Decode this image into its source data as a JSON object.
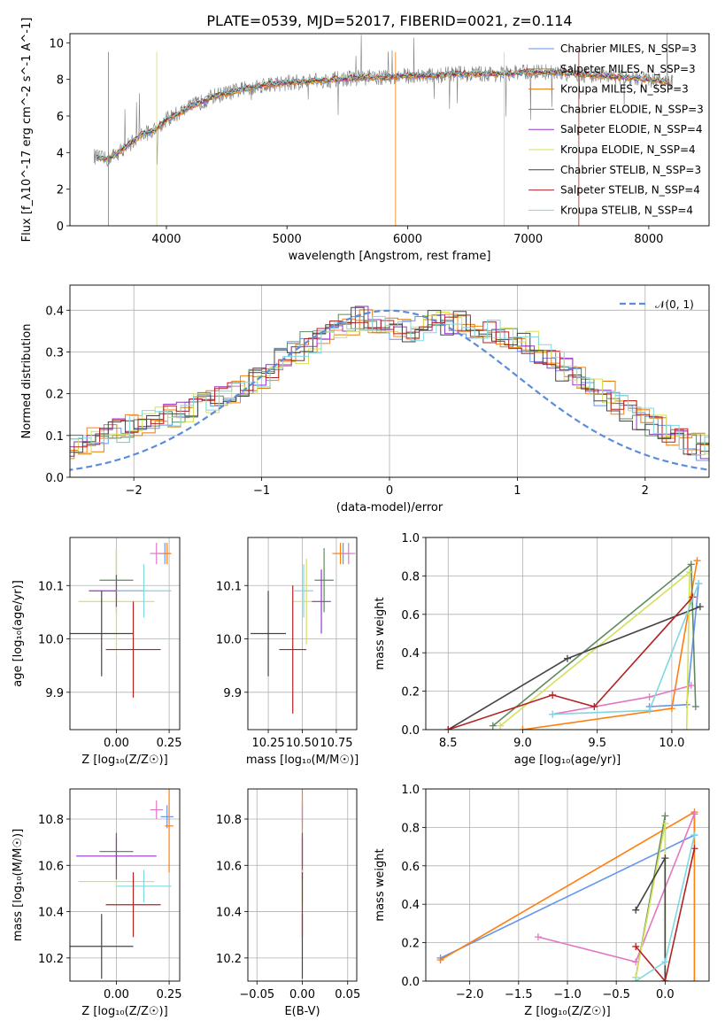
{
  "chart_data": [
    {
      "type": "line",
      "title": "PLATE=0539, MJD=52017, FIBERID=0021, z=0.114",
      "xlabel": "wavelength [Angstrom, rest frame]",
      "ylabel": "Flux [f_λ10^-17 erg cm^-2 s^-1 A^-1]",
      "xlim": [
        3200,
        8500
      ],
      "ylim": [
        0,
        10.5
      ],
      "xticks": [
        "4000",
        "5000",
        "6000",
        "7000",
        "8000"
      ],
      "yticks": [
        "0",
        "2",
        "4",
        "6",
        "8",
        "10"
      ],
      "legend_position": "top-right",
      "observed_spectrum_approx": {
        "x": [
          3400,
          3500,
          3600,
          3700,
          3800,
          3900,
          4000,
          4200,
          4400,
          4600,
          4800,
          5000,
          5200,
          5400,
          5600,
          5800,
          6000,
          6200,
          6400,
          6600,
          6800,
          7000,
          7200,
          7400,
          7600,
          7800,
          8000,
          8200
        ],
        "y": [
          3.8,
          3.6,
          4.0,
          4.5,
          5.0,
          5.2,
          5.8,
          6.5,
          7.1,
          7.4,
          7.7,
          7.8,
          7.9,
          8.0,
          8.1,
          8.1,
          8.2,
          8.2,
          8.3,
          8.3,
          8.3,
          8.4,
          8.4,
          8.3,
          8.2,
          8.1,
          8.0,
          7.8
        ]
      },
      "series": [
        {
          "name": "Chabrier MILES, N_SSP=3",
          "color": "#6495ed"
        },
        {
          "name": "Salpeter MILES, N_SSP=3",
          "color": "#ff7f0e"
        },
        {
          "name": "Kroupa MILES, N_SSP=3",
          "color": "#e07b0c"
        },
        {
          "name": "Chabrier ELODIE, N_SSP=3",
          "color": "#5f8a5f"
        },
        {
          "name": "Salpeter ELODIE, N_SSP=4",
          "color": "#9932cc"
        },
        {
          "name": "Kroupa ELODIE, N_SSP=4",
          "color": "#d4e157"
        },
        {
          "name": "Chabrier STELIB, N_SSP=3",
          "color": "#444444"
        },
        {
          "name": "Salpeter STELIB, N_SSP=4",
          "color": "#b22222"
        },
        {
          "name": "Kroupa STELIB, N_SSP=4",
          "color": "#7fd8e0"
        }
      ]
    },
    {
      "type": "step",
      "xlabel": "(data-model)/error",
      "ylabel": "Normed distribution",
      "xlim": [
        -2.5,
        2.5
      ],
      "ylim": [
        0,
        0.46
      ],
      "xticks": [
        "−2",
        "−1",
        "0",
        "1",
        "2"
      ],
      "yticks": [
        "0.0",
        "0.1",
        "0.2",
        "0.3",
        "0.4"
      ],
      "grid": true,
      "legend": "𝒩(0, 1)",
      "legend_position": "top-right",
      "normal_curve_color": "#5b8dd9",
      "bin_width": 0.1,
      "hist_envelope": [
        0.03,
        0.04,
        0.05,
        0.06,
        0.07,
        0.08,
        0.09,
        0.1,
        0.11,
        0.12,
        0.13,
        0.14,
        0.15,
        0.16,
        0.17,
        0.18,
        0.19,
        0.2,
        0.22,
        0.24,
        0.26,
        0.28,
        0.3,
        0.32,
        0.34,
        0.36,
        0.37,
        0.38,
        0.37,
        0.36,
        0.36,
        0.35,
        0.36,
        0.37,
        0.37,
        0.37,
        0.36,
        0.35,
        0.34,
        0.33,
        0.32,
        0.3,
        0.28,
        0.26,
        0.24,
        0.22,
        0.2,
        0.18,
        0.16,
        0.14,
        0.12,
        0.1,
        0.09,
        0.08,
        0.07,
        0.06,
        0.05,
        0.05,
        0.04,
        0.04
      ]
    },
    {
      "type": "scatter-errorbar",
      "xlabel": "Z [log₁₀(Z/Z☉)]",
      "ylabel": "age  [log₁₀(age/yr)]",
      "xlim": [
        -0.22,
        0.3
      ],
      "ylim": [
        9.83,
        10.19
      ],
      "xticks": [
        "0.00",
        "0.25"
      ],
      "yticks": [
        "9.9",
        "10.0",
        "10.1"
      ],
      "points": [
        {
          "x": 0.23,
          "y": 10.16,
          "dx": 0.03,
          "dy": 0.02,
          "color": "#6495ed"
        },
        {
          "x": 0.24,
          "y": 10.16,
          "dx": 0.02,
          "dy": 0.02,
          "color": "#ff7f0e"
        },
        {
          "x": 0.19,
          "y": 10.16,
          "dx": 0.03,
          "dy": 0.02,
          "color": "#e377c2"
        },
        {
          "x": 0.0,
          "y": 10.11,
          "dx": 0.08,
          "dy": 0.06,
          "color": "#5f8a5f"
        },
        {
          "x": 0.0,
          "y": 10.07,
          "dx": 0.18,
          "dy": 0.1,
          "color": "#d4e157"
        },
        {
          "x": 0.0,
          "y": 10.09,
          "dx": 0.13,
          "dy": 0.03,
          "color": "#9932cc"
        },
        {
          "x": 0.13,
          "y": 10.09,
          "dx": 0.13,
          "dy": 0.05,
          "color": "#7fd8e0"
        },
        {
          "x": -0.07,
          "y": 10.01,
          "dx": 0.15,
          "dy": 0.08,
          "color": "#444444"
        },
        {
          "x": 0.08,
          "y": 9.98,
          "dx": 0.13,
          "dy": 0.09,
          "color": "#b22222"
        }
      ]
    },
    {
      "type": "scatter-errorbar",
      "xlabel": "mass [log₁₀(M/M☉)]",
      "xlim": [
        10.1,
        10.9
      ],
      "ylim": [
        9.83,
        10.19
      ],
      "xticks": [
        "10.25",
        "10.50",
        "10.75"
      ],
      "yticks": [
        "9.9",
        "10.0",
        "10.1"
      ],
      "points": [
        {
          "x": 10.8,
          "y": 10.16,
          "dx": 0.06,
          "dy": 0.02,
          "color": "#6495ed"
        },
        {
          "x": 10.78,
          "y": 10.16,
          "dx": 0.06,
          "dy": 0.02,
          "color": "#ff7f0e"
        },
        {
          "x": 10.84,
          "y": 10.16,
          "dx": 0.05,
          "dy": 0.02,
          "color": "#e377c2"
        },
        {
          "x": 10.66,
          "y": 10.11,
          "dx": 0.07,
          "dy": 0.06,
          "color": "#5f8a5f"
        },
        {
          "x": 10.53,
          "y": 10.07,
          "dx": 0.1,
          "dy": 0.08,
          "color": "#d4e157"
        },
        {
          "x": 10.64,
          "y": 10.07,
          "dx": 0.07,
          "dy": 0.06,
          "color": "#9932cc"
        },
        {
          "x": 10.51,
          "y": 10.09,
          "dx": 0.07,
          "dy": 0.05,
          "color": "#7fd8e0"
        },
        {
          "x": 10.25,
          "y": 10.01,
          "dx": 0.13,
          "dy": 0.08,
          "color": "#444444"
        },
        {
          "x": 10.43,
          "y": 9.98,
          "dx": 0.1,
          "dy": 0.12,
          "color": "#b22222"
        }
      ]
    },
    {
      "type": "line",
      "xlabel": "age  [log₁₀(age/yr)]",
      "ylabel": "mass weight",
      "xlim": [
        8.35,
        10.25
      ],
      "ylim": [
        0,
        1
      ],
      "xticks": [
        "8.5",
        "9.0",
        "9.5",
        "10.0"
      ],
      "yticks": [
        "0.0",
        "0.2",
        "0.4",
        "0.6",
        "0.8",
        "1.0"
      ],
      "grid": true,
      "series": [
        {
          "color": "#6495ed",
          "x": [
            9.85,
            10.1,
            10.18
          ],
          "y": [
            0.12,
            0.13,
            0.76
          ]
        },
        {
          "color": "#ff7f0e",
          "x": [
            9.0,
            10.0,
            10.17
          ],
          "y": [
            0.0,
            0.11,
            0.88
          ]
        },
        {
          "color": "#e377c2",
          "x": [
            9.2,
            9.85,
            10.13
          ],
          "y": [
            0.08,
            0.17,
            0.23
          ]
        },
        {
          "color": "#5f8a5f",
          "x": [
            8.8,
            10.13,
            10.16
          ],
          "y": [
            0.02,
            0.86,
            0.12
          ]
        },
        {
          "color": "#d4e157",
          "x": [
            8.85,
            10.12,
            10.1
          ],
          "y": [
            0.02,
            0.82,
            0.0
          ]
        },
        {
          "color": "#444444",
          "x": [
            8.5,
            9.3,
            10.19
          ],
          "y": [
            0.0,
            0.37,
            0.64
          ]
        },
        {
          "color": "#b22222",
          "x": [
            8.5,
            9.2,
            9.48,
            10.14
          ],
          "y": [
            0.0,
            0.18,
            0.12,
            0.69
          ]
        },
        {
          "color": "#7fd8e0",
          "x": [
            9.2,
            9.85,
            10.18
          ],
          "y": [
            0.08,
            0.1,
            0.76
          ]
        }
      ]
    },
    {
      "type": "scatter-errorbar",
      "xlabel": "Z [log₁₀(Z/Z☉)]",
      "ylabel": "mass [log₁₀(M/M☉)]",
      "xlim": [
        -0.22,
        0.3
      ],
      "ylim": [
        10.1,
        10.93
      ],
      "xticks": [
        "0.00",
        "0.25"
      ],
      "yticks": [
        "10.2",
        "10.4",
        "10.6",
        "10.8"
      ],
      "points": [
        {
          "x": 0.24,
          "y": 10.81,
          "dx": 0.03,
          "dy": 0.05,
          "color": "#6495ed"
        },
        {
          "x": 0.25,
          "y": 10.77,
          "dx": 0.02,
          "dy": 0.2,
          "color": "#ff7f0e"
        },
        {
          "x": 0.19,
          "y": 10.84,
          "dx": 0.03,
          "dy": 0.04,
          "color": "#e377c2"
        },
        {
          "x": 0.0,
          "y": 10.66,
          "dx": 0.08,
          "dy": 0.06,
          "color": "#5f8a5f"
        },
        {
          "x": 0.0,
          "y": 10.53,
          "dx": 0.18,
          "dy": 0.1,
          "color": "#d4e157"
        },
        {
          "x": 0.0,
          "y": 10.64,
          "dx": 0.19,
          "dy": 0.1,
          "color": "#9932cc"
        },
        {
          "x": 0.13,
          "y": 10.51,
          "dx": 0.13,
          "dy": 0.07,
          "color": "#7fd8e0"
        },
        {
          "x": -0.07,
          "y": 10.25,
          "dx": 0.15,
          "dy": 0.14,
          "color": "#444444"
        },
        {
          "x": 0.08,
          "y": 10.43,
          "dx": 0.13,
          "dy": 0.14,
          "color": "#b22222"
        }
      ]
    },
    {
      "type": "scatter-errorbar",
      "xlabel": "E(B-V)",
      "xlim": [
        -0.06,
        0.06
      ],
      "ylim": [
        10.1,
        10.93
      ],
      "xticks": [
        "−0.05",
        "0.00",
        "0.05"
      ],
      "yticks": [
        "10.2",
        "10.4",
        "10.6",
        "10.8"
      ],
      "points": [
        {
          "x": 0.0,
          "y": 10.81,
          "dx": 0.0,
          "dy": 0.05,
          "color": "#6495ed"
        },
        {
          "x": 0.0,
          "y": 10.77,
          "dx": 0.0,
          "dy": 0.2,
          "color": "#ff7f0e"
        },
        {
          "x": 0.0,
          "y": 10.84,
          "dx": 0.0,
          "dy": 0.04,
          "color": "#e377c2"
        },
        {
          "x": 0.0,
          "y": 10.66,
          "dx": 0.0,
          "dy": 0.06,
          "color": "#5f8a5f"
        },
        {
          "x": 0.0,
          "y": 10.53,
          "dx": 0.0,
          "dy": 0.1,
          "color": "#d4e157"
        },
        {
          "x": 0.0,
          "y": 10.64,
          "dx": 0.0,
          "dy": 0.1,
          "color": "#9932cc"
        },
        {
          "x": 0.0,
          "y": 10.51,
          "dx": 0.0,
          "dy": 0.07,
          "color": "#7fd8e0"
        },
        {
          "x": 0.0,
          "y": 10.25,
          "dx": 0.0,
          "dy": 0.14,
          "color": "#444444"
        },
        {
          "x": 0.0,
          "y": 10.43,
          "dx": 0.0,
          "dy": 0.14,
          "color": "#b22222"
        }
      ]
    },
    {
      "type": "line",
      "xlabel": "Z [log₁₀(Z/Z☉)]",
      "ylabel": "mass weight",
      "xlim": [
        -2.45,
        0.45
      ],
      "ylim": [
        0,
        1
      ],
      "xticks": [
        "−2.0",
        "−1.5",
        "−1.0",
        "−0.5",
        "0.0"
      ],
      "yticks": [
        "0.0",
        "0.2",
        "0.4",
        "0.6",
        "0.8",
        "1.0"
      ],
      "grid": true,
      "series": [
        {
          "color": "#6495ed",
          "x": [
            -2.3,
            0.3,
            0.3
          ],
          "y": [
            0.12,
            0.76,
            0.87
          ]
        },
        {
          "color": "#ff7f0e",
          "x": [
            -2.3,
            0.3,
            0.3
          ],
          "y": [
            0.11,
            0.88,
            0.0
          ]
        },
        {
          "color": "#e377c2",
          "x": [
            -1.3,
            -0.3,
            0.3
          ],
          "y": [
            0.23,
            0.1,
            0.87
          ]
        },
        {
          "color": "#5f8a5f",
          "x": [
            -0.3,
            0.0,
            0.0
          ],
          "y": [
            0.02,
            0.86,
            0.0
          ]
        },
        {
          "color": "#d4e157",
          "x": [
            -0.3,
            0.0,
            0.0
          ],
          "y": [
            0.02,
            0.82,
            0.0
          ]
        },
        {
          "color": "#444444",
          "x": [
            -0.3,
            0.0,
            0.0
          ],
          "y": [
            0.37,
            0.64,
            0.0
          ]
        },
        {
          "color": "#b22222",
          "x": [
            -0.3,
            0.0,
            0.3
          ],
          "y": [
            0.18,
            0.0,
            0.69
          ]
        },
        {
          "color": "#7fd8e0",
          "x": [
            -0.3,
            0.0,
            0.3
          ],
          "y": [
            0.0,
            0.1,
            0.76
          ]
        }
      ]
    }
  ]
}
